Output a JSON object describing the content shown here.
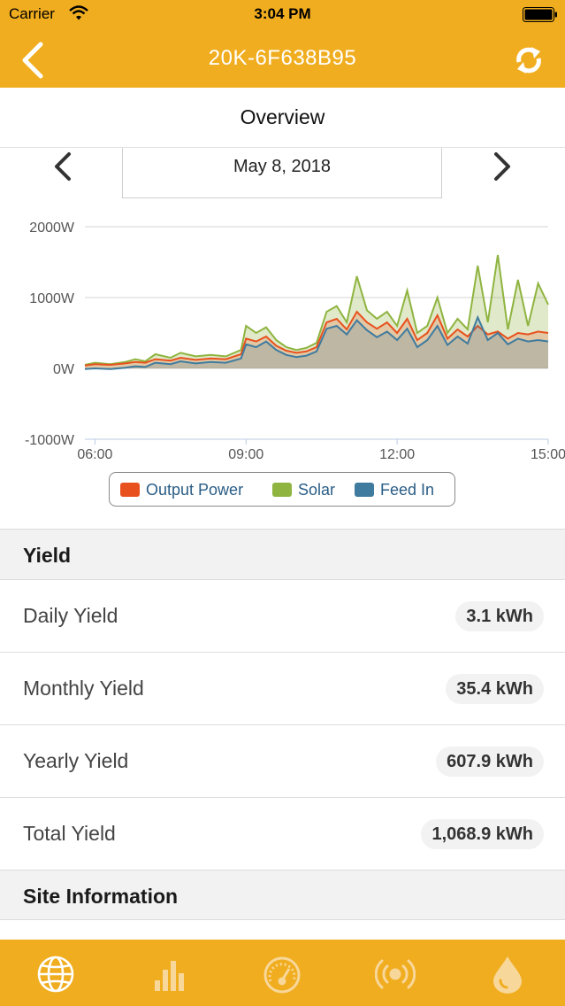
{
  "status_bar": {
    "carrier": "Carrier",
    "time": "3:04 PM"
  },
  "nav": {
    "title": "20K-6F638B95",
    "back_icon": "chevron-left-icon",
    "refresh_icon": "refresh-icon"
  },
  "overview": {
    "title": "Overview"
  },
  "date_selector": {
    "date": "May 8, 2018"
  },
  "colors": {
    "accent": "#f0ad1f",
    "output_power": "#e8511e",
    "solar": "#8fb440",
    "feed_in": "#3f7b9f"
  },
  "chart_data": {
    "type": "area",
    "y_tick_labels": [
      "2000W",
      "1000W",
      "0W",
      "-1000W"
    ],
    "x_tick_labels": [
      "06:00",
      "09:00",
      "12:00",
      "15:00"
    ],
    "ylim": [
      -1000,
      2000
    ],
    "xlim": [
      5.8,
      15.0
    ],
    "grid": true,
    "legend_position": "bottom",
    "x": [
      5.8,
      6.0,
      6.3,
      6.6,
      6.8,
      7.0,
      7.2,
      7.5,
      7.7,
      8.0,
      8.3,
      8.6,
      8.9,
      9.0,
      9.2,
      9.4,
      9.6,
      9.8,
      10.0,
      10.2,
      10.4,
      10.6,
      10.8,
      11.0,
      11.2,
      11.4,
      11.6,
      11.8,
      12.0,
      12.2,
      12.4,
      12.6,
      12.8,
      13.0,
      13.2,
      13.4,
      13.6,
      13.8,
      14.0,
      14.2,
      14.4,
      14.6,
      14.8,
      15.0
    ],
    "series": [
      {
        "name": "Output Power",
        "values": [
          40,
          60,
          50,
          70,
          90,
          80,
          130,
          110,
          150,
          120,
          140,
          130,
          200,
          420,
          380,
          450,
          320,
          250,
          220,
          240,
          300,
          650,
          700,
          550,
          800,
          650,
          560,
          650,
          500,
          700,
          400,
          500,
          750,
          420,
          550,
          450,
          600,
          480,
          520,
          420,
          500,
          480,
          520,
          500
        ]
      },
      {
        "name": "Solar",
        "values": [
          50,
          80,
          60,
          90,
          130,
          100,
          200,
          150,
          220,
          170,
          190,
          170,
          260,
          600,
          500,
          580,
          400,
          300,
          260,
          290,
          360,
          800,
          880,
          650,
          1300,
          820,
          700,
          800,
          600,
          1100,
          500,
          600,
          1000,
          500,
          700,
          550,
          1450,
          650,
          1600,
          550,
          1250,
          600,
          1200,
          900
        ]
      },
      {
        "name": "Feed In",
        "values": [
          -10,
          0,
          -10,
          10,
          30,
          20,
          80,
          60,
          100,
          70,
          90,
          80,
          140,
          340,
          300,
          380,
          260,
          190,
          160,
          180,
          240,
          560,
          600,
          480,
          680,
          540,
          440,
          520,
          400,
          560,
          300,
          400,
          600,
          330,
          450,
          350,
          720,
          400,
          500,
          340,
          420,
          380,
          400,
          380
        ]
      }
    ]
  },
  "yield": {
    "header": "Yield",
    "rows": [
      {
        "label": "Daily Yield",
        "value": "3.1 kWh"
      },
      {
        "label": "Monthly Yield",
        "value": "35.4 kWh"
      },
      {
        "label": "Yearly Yield",
        "value": "607.9 kWh"
      },
      {
        "label": "Total Yield",
        "value": "1,068.9 kWh"
      }
    ]
  },
  "site_info": {
    "header": "Site Information"
  },
  "tabbar": {
    "icons": [
      "globe-icon",
      "bar-chart-icon",
      "gauge-icon",
      "signal-icon",
      "drop-icon"
    ]
  }
}
